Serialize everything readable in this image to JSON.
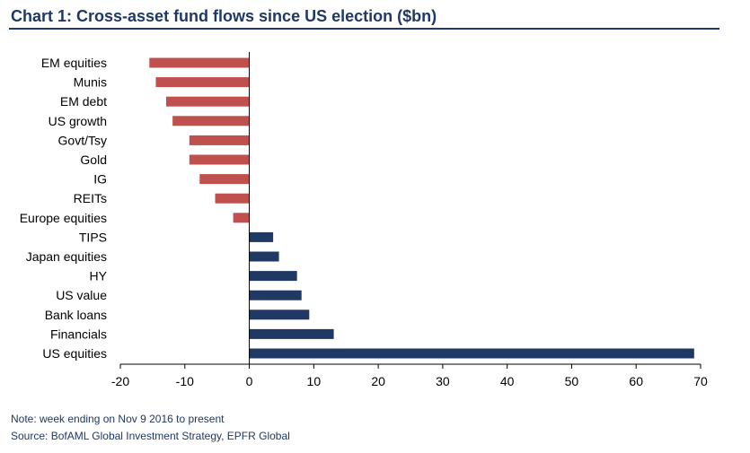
{
  "title": "Chart 1:  Cross-asset fund flows since US election ($bn)",
  "note": "Note: week ending on Nov 9 2016 to present",
  "source": "Source: BofAML Global Investment Strategy, EPFR Global",
  "colors": {
    "negative": "#c0504d",
    "positive": "#1f3864",
    "title": "#1f3864"
  },
  "chart_data": {
    "type": "bar",
    "orientation": "horizontal",
    "title": "Chart 1:  Cross-asset fund flows since US election ($bn)",
    "xlabel": "",
    "ylabel": "",
    "xlim": [
      -20,
      70
    ],
    "xticks": [
      -20,
      -10,
      0,
      10,
      20,
      30,
      40,
      50,
      60,
      70
    ],
    "grid": false,
    "categories": [
      "EM equities",
      "Munis",
      "EM debt",
      "US growth",
      "Govt/Tsy",
      "Gold",
      "IG",
      "REITs",
      "Europe equities",
      "TIPS",
      "Japan equities",
      "HY",
      "US value",
      "Bank loans",
      "Financials",
      "US equities"
    ],
    "values": [
      -15.5,
      -14.5,
      -12.9,
      -11.9,
      -9.3,
      -9.3,
      -7.7,
      -5.3,
      -2.5,
      3.7,
      4.6,
      7.4,
      8.1,
      9.3,
      13.1,
      69.0
    ]
  }
}
